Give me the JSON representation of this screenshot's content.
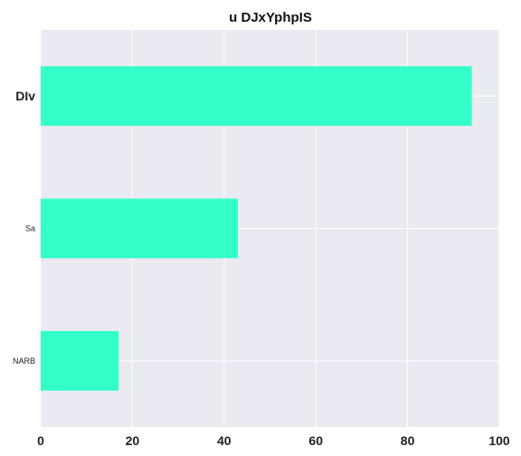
{
  "chart_data": {
    "type": "bar",
    "orientation": "horizontal",
    "title": "u DJxYphpIS",
    "xlabel": "",
    "ylabel": "",
    "categories": [
      "DIv",
      "Sa",
      "NARB"
    ],
    "values": [
      94,
      43,
      17
    ],
    "xlim": [
      0,
      100
    ],
    "xticks": [
      0,
      20,
      40,
      60,
      80,
      100
    ],
    "grid": true,
    "colors": {
      "bar": "#33ffc7",
      "plot_background": "#eaeaf2",
      "grid": "#ffffff"
    }
  }
}
